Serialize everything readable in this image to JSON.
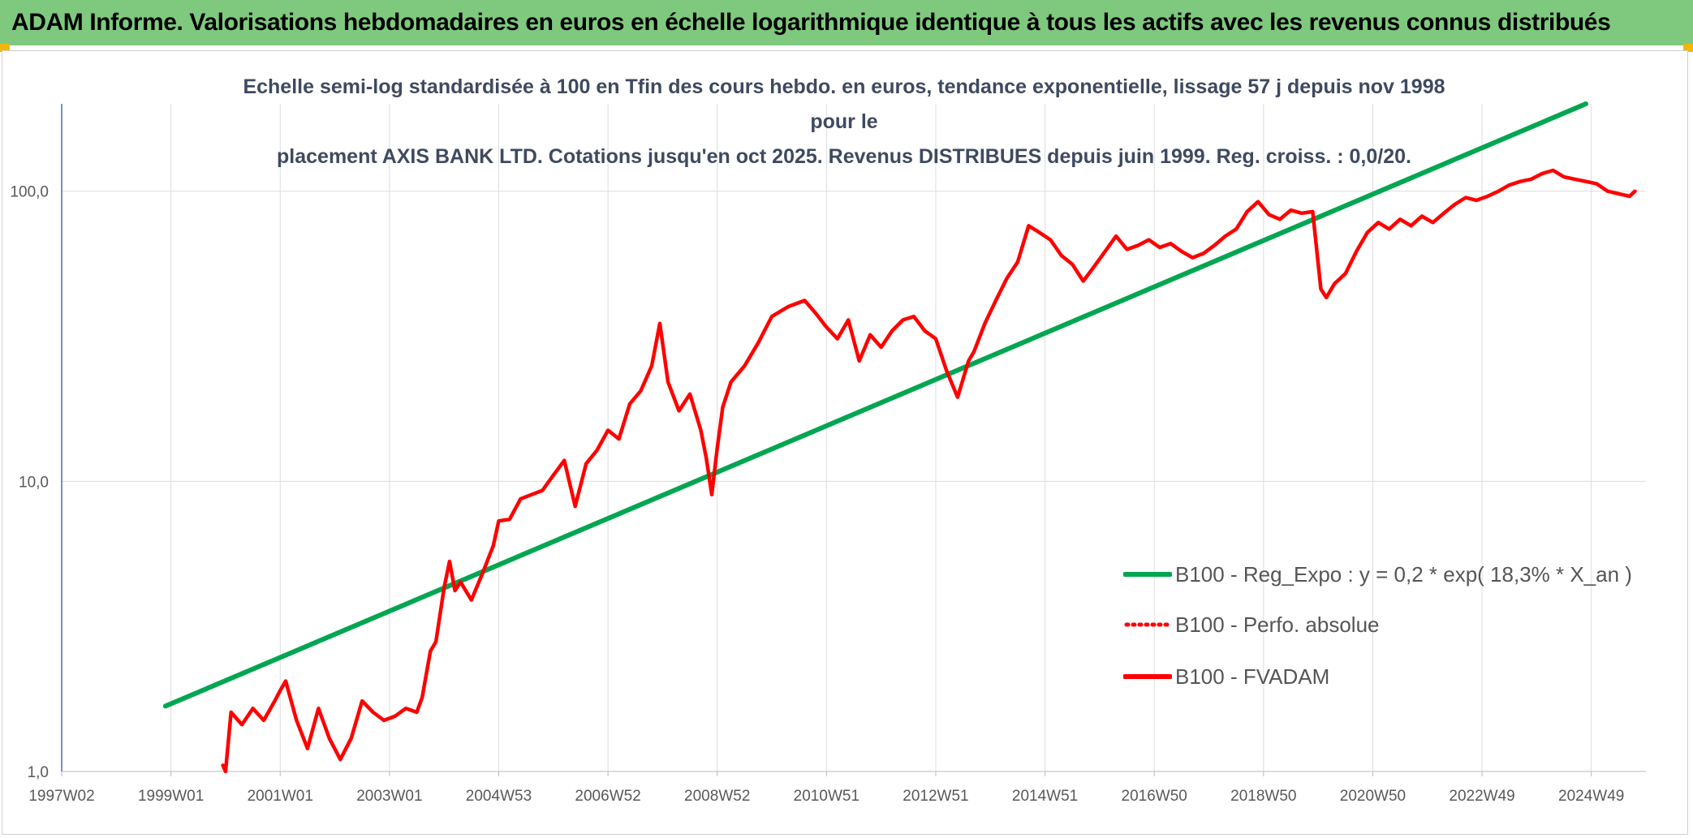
{
  "header": {
    "title": "ADAM Informe. Valorisations hebdomadaires en euros en échelle logarithmique identique à tous les actifs avec les revenus connus distribués"
  },
  "chart_data": {
    "type": "line",
    "subtitle_line1": "Echelle semi-log standardisée à 100 en Tfin des cours hebdo. en euros, tendance exponentielle, lissage 57 j depuis nov 1998 pour le",
    "subtitle_line2": "placement AXIS BANK LTD. Cotations jusqu'en oct 2025. Revenus DISTRIBUES depuis juin 1999. Reg. croiss. : 0,0/20.",
    "y_scale": "log",
    "ylim": [
      1,
      200
    ],
    "y_ticks": [
      {
        "value": 1,
        "label": "1,0"
      },
      {
        "value": 10,
        "label": "10,0"
      },
      {
        "value": 100,
        "label": "100,0"
      }
    ],
    "xlim": [
      1997.0,
      2026.0
    ],
    "x_ticks": [
      {
        "value": 1997.0,
        "label": "1997W02"
      },
      {
        "value": 1999.0,
        "label": "1999W01"
      },
      {
        "value": 2001.0,
        "label": "2001W01"
      },
      {
        "value": 2003.0,
        "label": "2003W01"
      },
      {
        "value": 2005.0,
        "label": "2004W53"
      },
      {
        "value": 2007.0,
        "label": "2006W52"
      },
      {
        "value": 2009.0,
        "label": "2008W52"
      },
      {
        "value": 2011.0,
        "label": "2010W51"
      },
      {
        "value": 2013.0,
        "label": "2012W51"
      },
      {
        "value": 2015.0,
        "label": "2014W51"
      },
      {
        "value": 2017.0,
        "label": "2016W50"
      },
      {
        "value": 2019.0,
        "label": "2018W50"
      },
      {
        "value": 2021.0,
        "label": "2020W50"
      },
      {
        "value": 2023.0,
        "label": "2022W49"
      },
      {
        "value": 2025.0,
        "label": "2024W49"
      }
    ],
    "grid": "vertical-and-horizontal",
    "legend_position": "right-bottom",
    "series": [
      {
        "name": "B100 - Reg_Expo : y = 0,2 * exp( 18,3% *  X_an )",
        "color": "#00a651",
        "style": "solid",
        "x": [
          1998.9,
          2024.9
        ],
        "y": [
          1.68,
          200
        ]
      },
      {
        "name": "B100 - Perfo. absolue",
        "color": "#ff0000",
        "style": "dotted",
        "x": [],
        "y": []
      },
      {
        "name": "B100 - FVADAM",
        "color": "#ff0000",
        "style": "solid",
        "x": [
          1999.95,
          2000.0,
          2000.1,
          2000.3,
          2000.5,
          2000.7,
          2000.9,
          2001.0,
          2001.1,
          2001.3,
          2001.5,
          2001.7,
          2001.9,
          2002.1,
          2002.3,
          2002.5,
          2002.7,
          2002.9,
          2003.1,
          2003.3,
          2003.5,
          2003.6,
          2003.75,
          2003.85,
          2004.0,
          2004.1,
          2004.2,
          2004.3,
          2004.5,
          2004.7,
          2004.9,
          2005.0,
          2005.2,
          2005.4,
          2005.6,
          2005.8,
          2006.0,
          2006.2,
          2006.4,
          2006.6,
          2006.8,
          2007.0,
          2007.2,
          2007.4,
          2007.6,
          2007.8,
          2007.95,
          2008.1,
          2008.3,
          2008.5,
          2008.7,
          2008.8,
          2008.9,
          2009.0,
          2009.1,
          2009.25,
          2009.5,
          2009.75,
          2010.0,
          2010.3,
          2010.6,
          2010.8,
          2011.0,
          2011.2,
          2011.4,
          2011.6,
          2011.8,
          2012.0,
          2012.2,
          2012.4,
          2012.6,
          2012.8,
          2013.0,
          2013.2,
          2013.4,
          2013.6,
          2013.7,
          2013.9,
          2014.1,
          2014.3,
          2014.5,
          2014.7,
          2014.9,
          2015.1,
          2015.3,
          2015.5,
          2015.7,
          2015.9,
          2016.1,
          2016.3,
          2016.5,
          2016.7,
          2016.9,
          2017.1,
          2017.3,
          2017.5,
          2017.7,
          2017.9,
          2018.1,
          2018.3,
          2018.5,
          2018.7,
          2018.9,
          2019.1,
          2019.3,
          2019.5,
          2019.7,
          2019.9,
          2020.05,
          2020.15,
          2020.3,
          2020.5,
          2020.7,
          2020.9,
          2021.1,
          2021.3,
          2021.5,
          2021.7,
          2021.9,
          2022.1,
          2022.3,
          2022.5,
          2022.7,
          2022.9,
          2023.1,
          2023.3,
          2023.5,
          2023.7,
          2023.9,
          2024.1,
          2024.3,
          2024.5,
          2024.7,
          2024.9,
          2025.1,
          2025.3,
          2025.5,
          2025.7,
          2025.8
        ],
        "y": [
          1.05,
          1.0,
          1.6,
          1.45,
          1.65,
          1.5,
          1.75,
          1.9,
          2.05,
          1.5,
          1.2,
          1.65,
          1.3,
          1.1,
          1.3,
          1.75,
          1.6,
          1.5,
          1.55,
          1.65,
          1.6,
          1.8,
          2.6,
          2.8,
          4.3,
          5.3,
          4.2,
          4.5,
          3.9,
          4.8,
          6.0,
          7.3,
          7.4,
          8.7,
          9.0,
          9.3,
          10.5,
          11.8,
          8.2,
          11.5,
          12.8,
          15.0,
          14.0,
          18.5,
          20.5,
          25.0,
          35.0,
          22.0,
          17.5,
          20.0,
          15.0,
          12.0,
          9.0,
          13.0,
          18.0,
          22.0,
          25.0,
          30.0,
          37.0,
          40.0,
          42.0,
          38.0,
          34.0,
          31.0,
          36.0,
          26.0,
          32.0,
          29.0,
          33.0,
          36.0,
          37.0,
          33.0,
          31.0,
          24.0,
          19.5,
          26.0,
          28.0,
          35.0,
          42.0,
          50.0,
          57.0,
          76.0,
          72.0,
          68.0,
          60.0,
          56.0,
          49.0,
          55.0,
          62.0,
          70.0,
          63.0,
          65.0,
          68.0,
          64.0,
          66.0,
          62.0,
          59.0,
          61.0,
          65.0,
          70.0,
          74.0,
          85.0,
          92.0,
          83.0,
          80.0,
          86.0,
          84.0,
          85.0,
          46.0,
          43.0,
          48.0,
          52.0,
          62.0,
          72.0,
          78.0,
          74.0,
          80.0,
          76.0,
          82.0,
          78.0,
          84.0,
          90.0,
          95.0,
          93.0,
          96.0,
          100.0,
          105.0,
          108.0,
          110.0,
          115.0,
          118.0,
          112.0,
          110.0,
          108.0,
          106.0,
          100.0,
          98.0,
          96.0,
          100.0
        ]
      }
    ]
  }
}
